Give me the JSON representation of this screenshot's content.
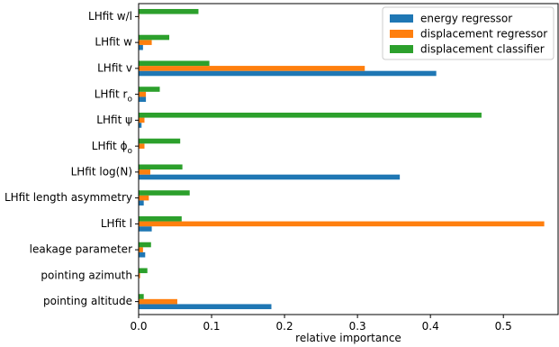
{
  "chart_data": {
    "type": "bar",
    "orientation": "horizontal",
    "categories": [
      "LHfit w/l",
      "LHfit w",
      "LHfit v",
      "LHfit r_o",
      "LHfit ψ",
      "LHfit ϕ_o",
      "LHfit log(N)",
      "LHfit length asymmetry",
      "LHfit l",
      "leakage parameter",
      "pointing azimuth",
      "pointing altitude"
    ],
    "series": [
      {
        "name": "energy regressor",
        "color": "#1f77b4",
        "values": [
          0.0,
          0.006,
          0.408,
          0.01,
          0.004,
          0.0,
          0.358,
          0.007,
          0.018,
          0.009,
          0.0,
          0.182
        ]
      },
      {
        "name": "displacement regressor",
        "color": "#ff7f0e",
        "values": [
          0.001,
          0.018,
          0.31,
          0.01,
          0.008,
          0.008,
          0.016,
          0.014,
          0.556,
          0.006,
          0.002,
          0.053
        ]
      },
      {
        "name": "displacement classifier",
        "color": "#2ca02c",
        "values": [
          0.082,
          0.042,
          0.097,
          0.029,
          0.47,
          0.057,
          0.06,
          0.07,
          0.059,
          0.017,
          0.012,
          0.007
        ]
      }
    ],
    "xlabel": "relative importance",
    "ylabel": "",
    "xlim": [
      0,
      0.575
    ],
    "xticks": [
      0.0,
      0.1,
      0.2,
      0.3,
      0.4,
      0.5
    ],
    "xtick_labels": [
      "0.0",
      "0.1",
      "0.2",
      "0.3",
      "0.4",
      "0.5"
    ],
    "legend_position": "top-right",
    "grid": false
  }
}
